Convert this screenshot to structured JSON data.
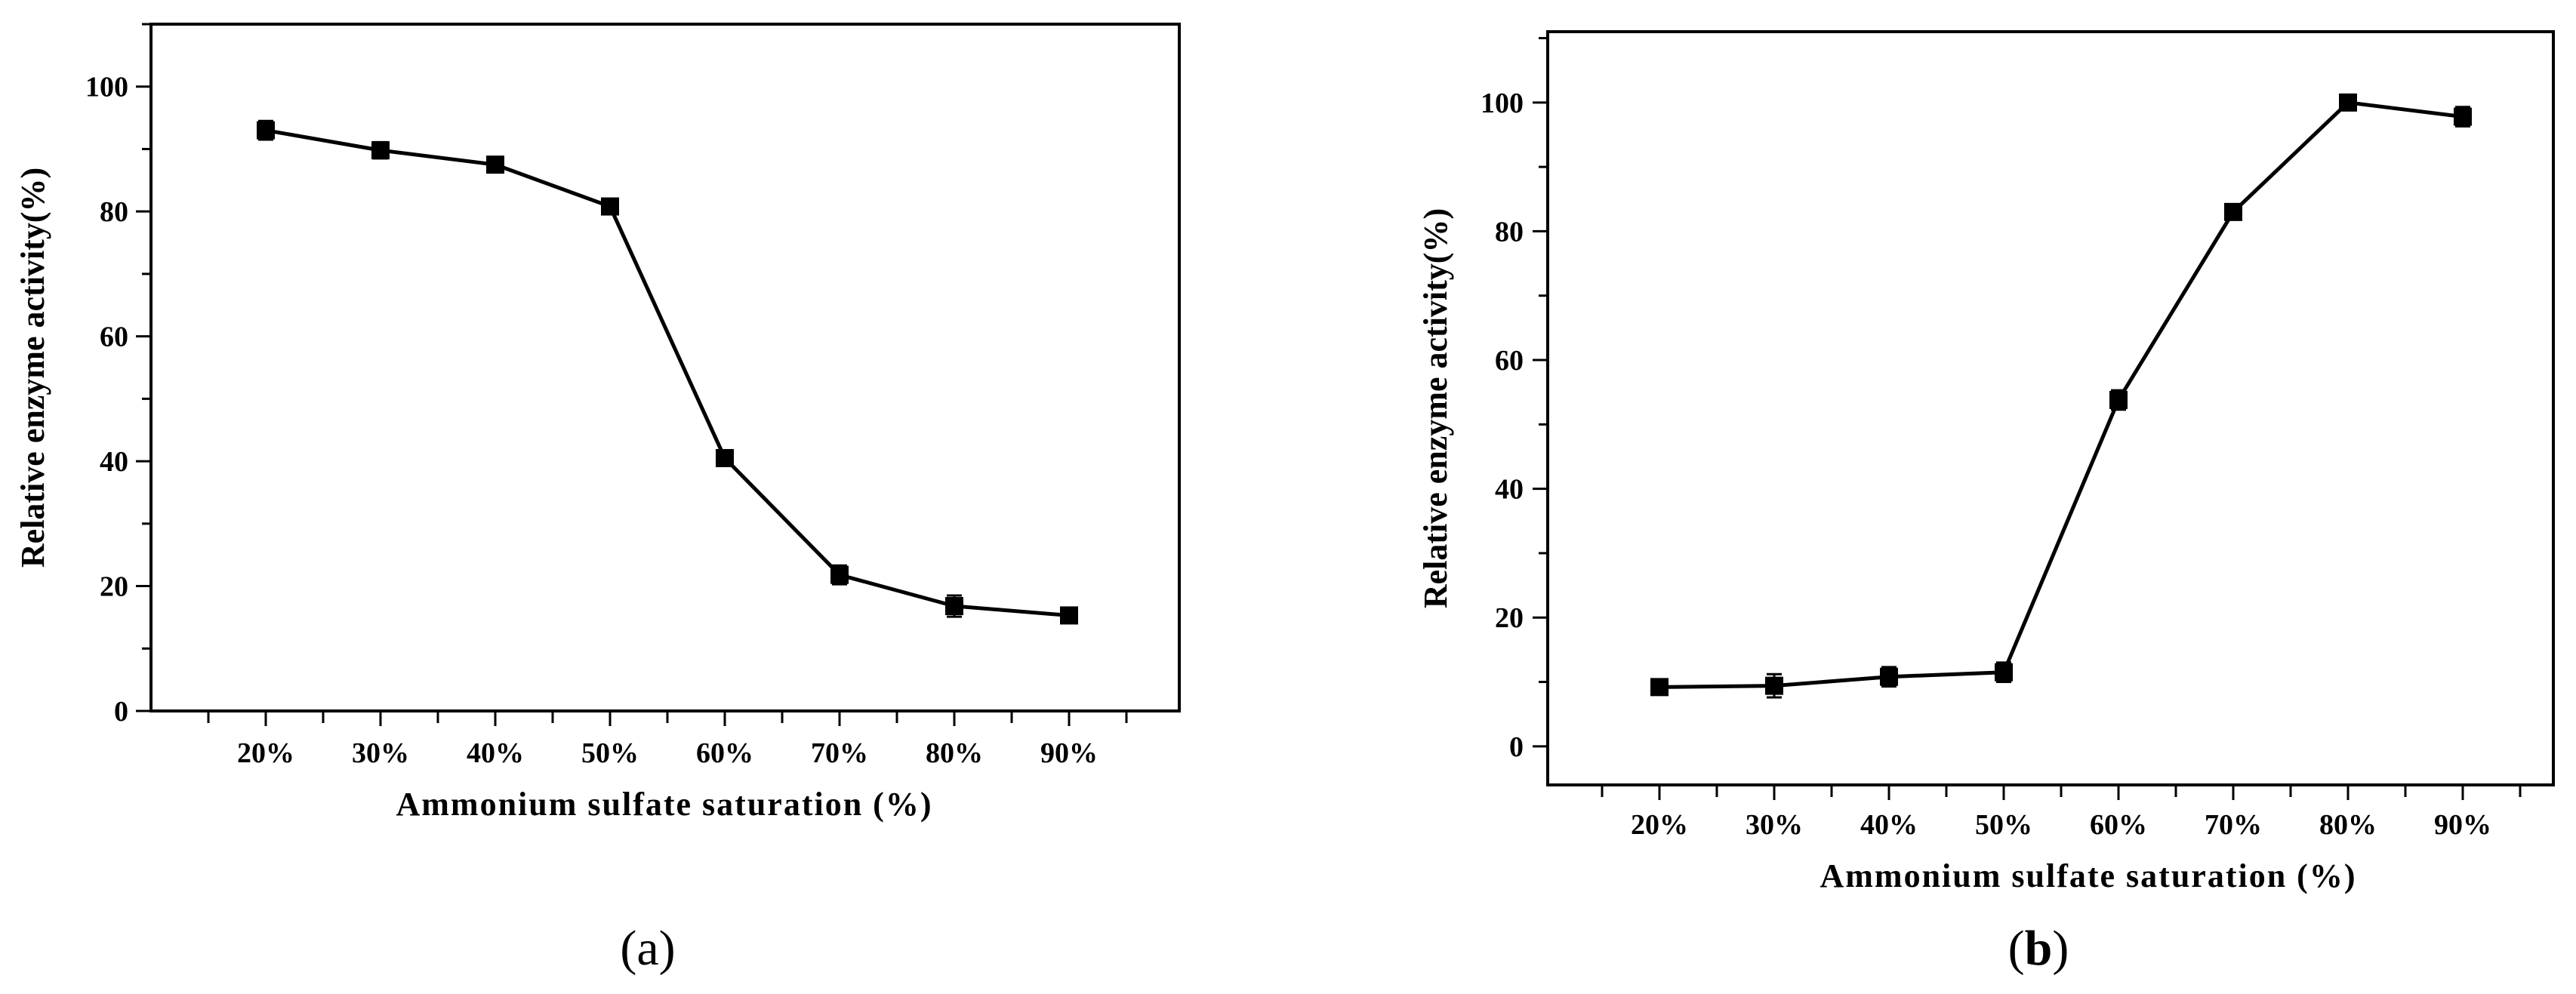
{
  "chart_data": [
    {
      "type": "line",
      "panel_label": "a",
      "x": [
        "20%",
        "30%",
        "40%",
        "50%",
        "60%",
        "70%",
        "80%",
        "90%"
      ],
      "series": [
        {
          "values": [
            93,
            89.8,
            87.5,
            80.8,
            40.5,
            21.8,
            16.8,
            15.3
          ],
          "errors": [
            1.5,
            1.3,
            0.8,
            1.2,
            0.8,
            1.5,
            1.7,
            0.6
          ]
        }
      ],
      "xlabel": "Ammonium sulfate saturation (%)",
      "ylabel": "Relative enzyme activity(%)",
      "ylim": [
        0,
        110
      ],
      "yticks": [
        0,
        20,
        40,
        60,
        80,
        100
      ],
      "grid": false,
      "marker": "square"
    },
    {
      "type": "line",
      "panel_label": "b",
      "x": [
        "20%",
        "30%",
        "40%",
        "50%",
        "60%",
        "70%",
        "80%",
        "90%"
      ],
      "series": [
        {
          "values": [
            9.2,
            9.4,
            10.8,
            11.5,
            53.8,
            83,
            100,
            97.8
          ],
          "errors": [
            0.6,
            1.8,
            1.5,
            1.5,
            1.5,
            0.6,
            0.6,
            1.5
          ]
        }
      ],
      "xlabel": "Ammonium sulfate saturation (%)",
      "ylabel": "Relative enzyme activity(%)",
      "ylim": [
        -6,
        111
      ],
      "yticks": [
        0,
        20,
        40,
        60,
        80,
        100
      ],
      "grid": false,
      "marker": "square"
    }
  ]
}
